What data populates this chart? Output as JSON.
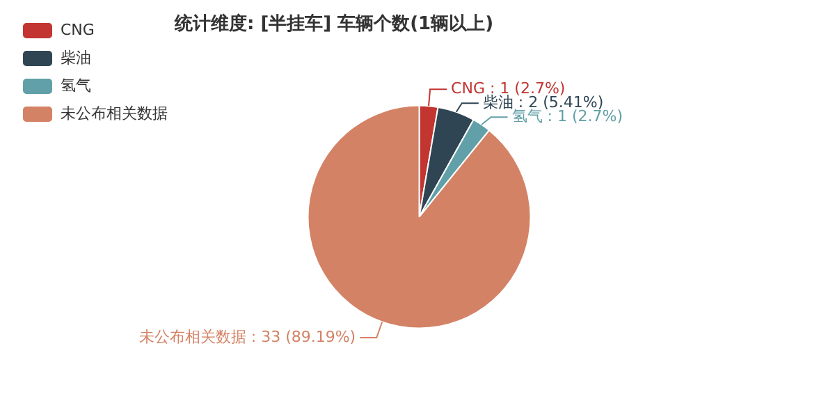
{
  "chart_data": {
    "type": "pie",
    "title": "统计维度: [半挂车] 车辆个数(1辆以上)",
    "categories": [
      "CNG",
      "柴油",
      "氢气",
      "未公布相关数据"
    ],
    "values": [
      1,
      2,
      1,
      33
    ],
    "colors": [
      "#c23531",
      "#2f4554",
      "#61a0a8",
      "#d48265"
    ],
    "value_labels": [
      "CNG : 1 (2.7%)",
      "柴油 : 2 (5.41%)",
      "氢气 : 1 (2.7%)",
      "未公布相关数据 : 33 (89.19%)"
    ],
    "legend": "top left"
  }
}
